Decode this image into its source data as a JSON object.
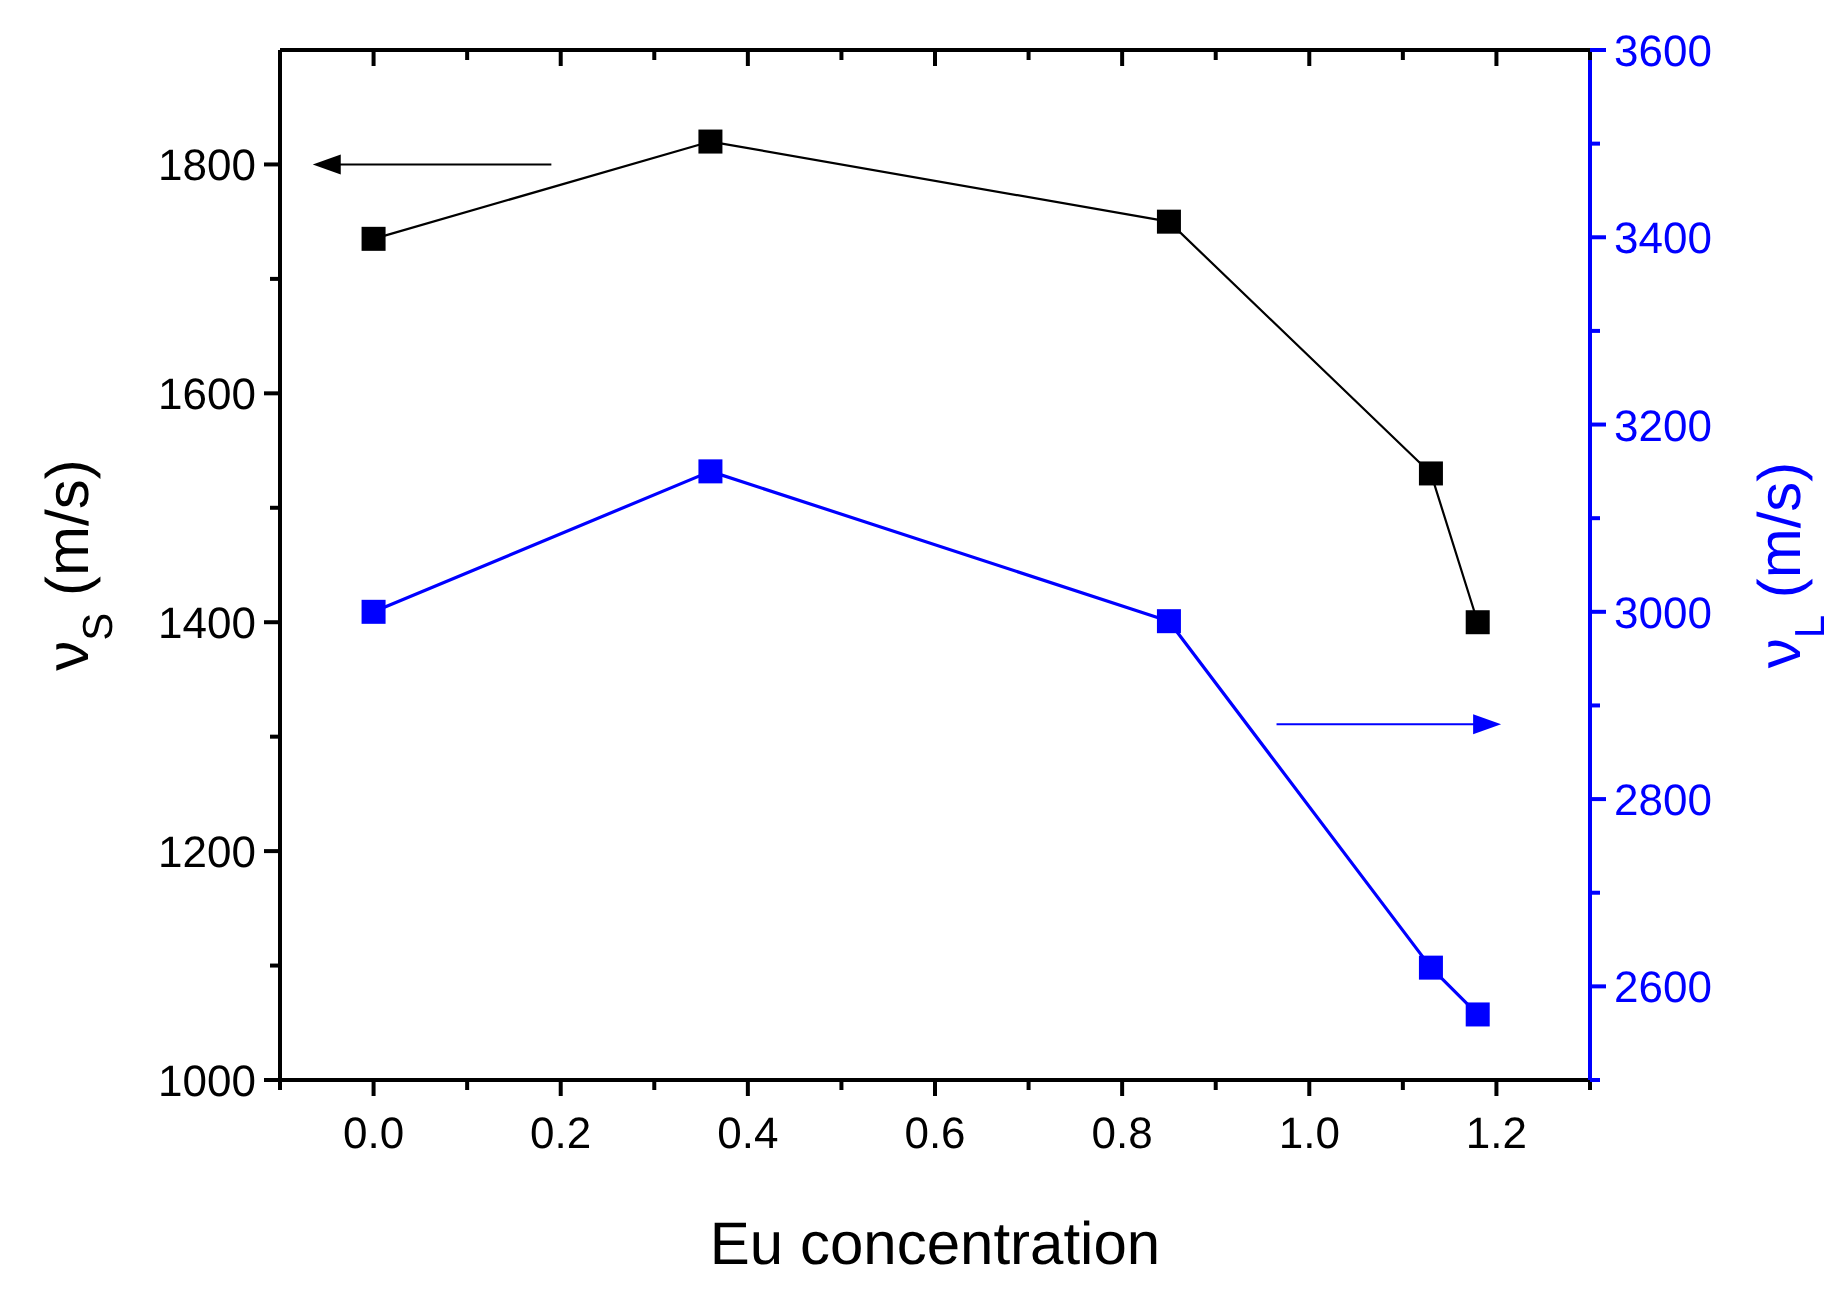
{
  "chart_data": {
    "type": "line",
    "xlabel": "Eu concentration",
    "ylabel": "ν$_{S}$ (m/s)",
    "y2label": "ν$_{L}$ (m/s)",
    "x": [
      0,
      0.36,
      0.85,
      1.13,
      1.18
    ],
    "series": [
      {
        "color": "#000000",
        "values": [
          1735,
          1820,
          1750,
          1530,
          1400
        ]
      },
      {
        "color": "#0000ff",
        "values": [
          3000,
          3150,
          2990,
          2620,
          2570
        ],
        "axis": "y2"
      }
    ],
    "xlim": [
      -0.1,
      1.3
    ],
    "xticks": [
      {
        "value": -0.1,
        "label": null
      },
      {
        "value": 0.0,
        "label": "0.0"
      },
      {
        "value": 0.1,
        "label": null
      },
      {
        "value": 0.2,
        "label": "0.2"
      },
      {
        "value": 0.3,
        "label": null
      },
      {
        "value": 0.4,
        "label": "0.4"
      },
      {
        "value": 0.5,
        "label": null
      },
      {
        "value": 0.6,
        "label": "0.6"
      },
      {
        "value": 0.7,
        "label": null
      },
      {
        "value": 0.8,
        "label": "0.8"
      },
      {
        "value": 0.9,
        "label": null
      },
      {
        "value": 1.0,
        "label": "1.0"
      },
      {
        "value": 1.1,
        "label": null
      },
      {
        "value": 1.2,
        "label": "1.2"
      },
      {
        "value": 1.3,
        "label": null
      }
    ],
    "ylim": [
      1000,
      1900
    ],
    "yticks": [
      1000,
      {
        "value": 1100,
        "label": null
      },
      1200,
      {
        "value": 1300,
        "label": null
      },
      1400,
      {
        "value": 1500,
        "label": null
      },
      1600,
      {
        "value": 1700,
        "label": null
      },
      1800
    ],
    "y2lim": [
      2500,
      3600
    ],
    "y2ticks": [
      {
        "value": 2500,
        "label": null
      },
      2600,
      {
        "value": 2700,
        "label": null
      },
      2800,
      {
        "value": 2900,
        "label": null
      },
      3000,
      {
        "value": 3100,
        "label": null
      },
      3200,
      {
        "value": 3300,
        "label": null
      },
      3400,
      {
        "value": 3500,
        "label": null
      },
      3600
    ],
    "marker": "square",
    "line_style": "solid"
  }
}
